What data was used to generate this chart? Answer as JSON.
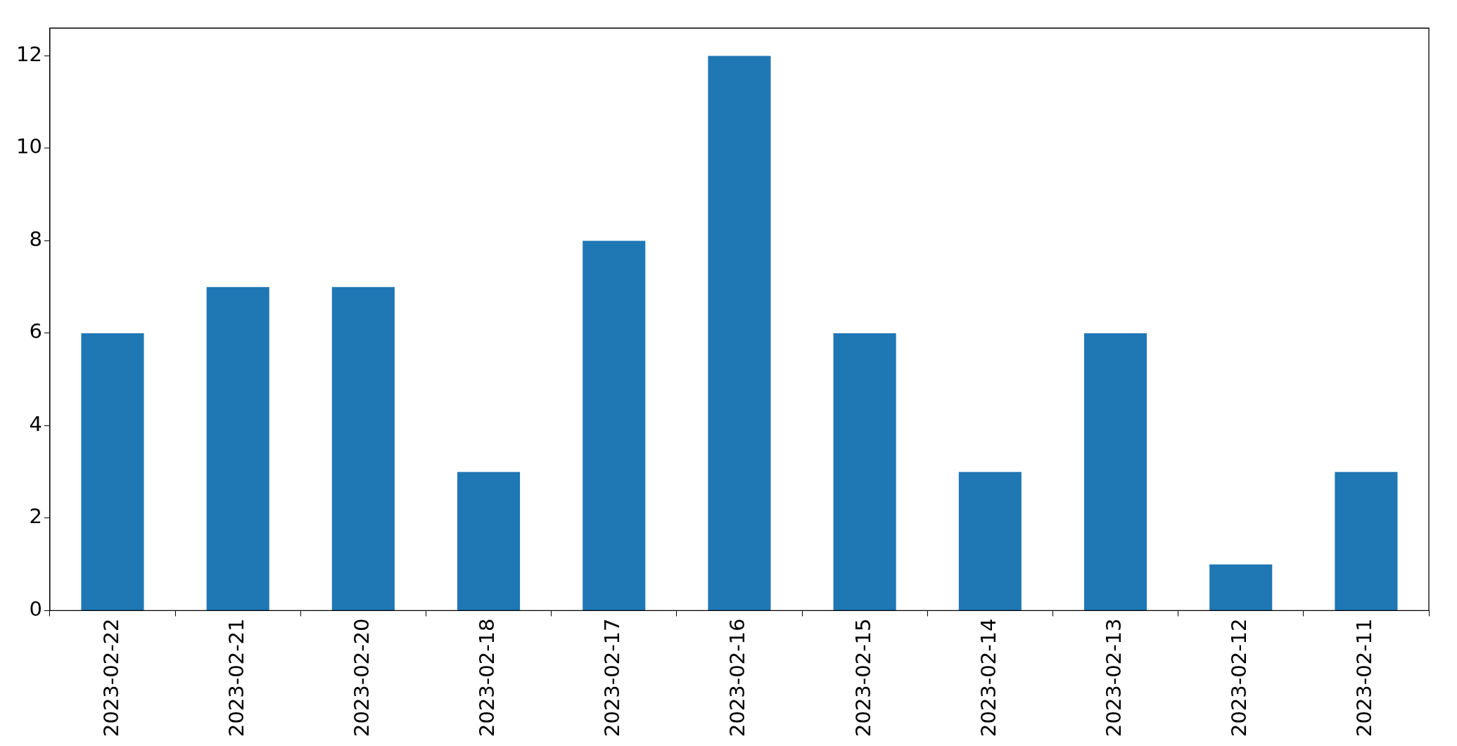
{
  "chart_data": {
    "type": "bar",
    "categories": [
      "2023-02-22",
      "2023-02-21",
      "2023-02-20",
      "2023-02-18",
      "2023-02-17",
      "2023-02-16",
      "2023-02-15",
      "2023-02-14",
      "2023-02-13",
      "2023-02-12",
      "2023-02-11"
    ],
    "values": [
      6,
      7,
      7,
      3,
      8,
      12,
      6,
      3,
      6,
      1,
      3
    ],
    "color": "#1f77b4",
    "ylim": [
      0,
      12.6
    ],
    "yticks": [
      0,
      2,
      4,
      6,
      8,
      10,
      12
    ],
    "grid": false,
    "legend": false
  }
}
